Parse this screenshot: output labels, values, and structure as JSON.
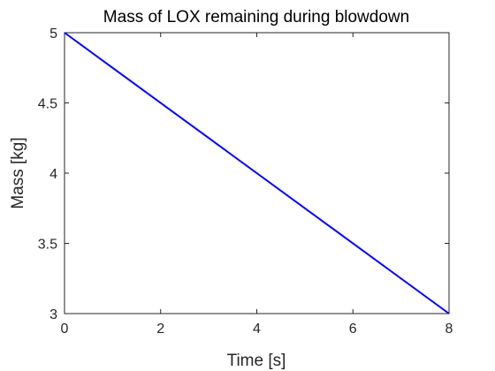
{
  "chart_data": {
    "type": "line",
    "title": "Mass of LOX remaining during blowdown",
    "xlabel": "Time [s]",
    "ylabel": "Mass [kg]",
    "xlim": [
      0,
      8
    ],
    "ylim": [
      3,
      5
    ],
    "xticks": [
      0,
      2,
      4,
      6,
      8
    ],
    "yticks": [
      3,
      3.5,
      4,
      4.5,
      5
    ],
    "xtick_labels": [
      "0",
      "2",
      "4",
      "6",
      "8"
    ],
    "ytick_labels": [
      "3",
      "3.5",
      "4",
      "4.5",
      "5"
    ],
    "grid": false,
    "series": [
      {
        "color": "#0000ff",
        "x": [
          0,
          8
        ],
        "y": [
          5,
          3
        ]
      }
    ]
  }
}
